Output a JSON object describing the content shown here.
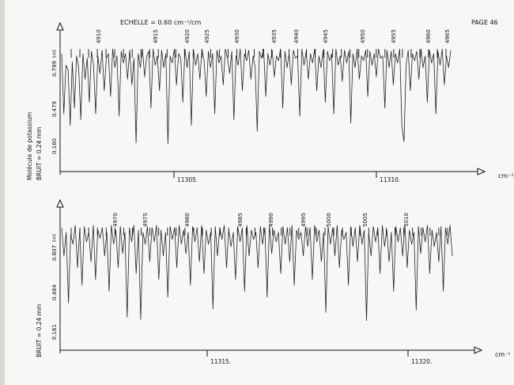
{
  "header": {
    "scale_label": "ECHELLE = 0.60 cm⁻¹/cm",
    "page_label": "PAGE 46"
  },
  "side": {
    "molecule": "Molécule de potassium",
    "noise_top": "BRUIT = 0.24 mm",
    "noise_bottom": "BRUIT = 0.24 mm"
  },
  "chart_data": [
    {
      "type": "line",
      "title": "",
      "xlabel": "cm⁻¹",
      "ylabel": "",
      "x_ticks": [
        "11305.",
        "11310."
      ],
      "y_ticks": [
        "0.160",
        "0.479",
        "0.799"
      ],
      "y_marker": "I=I",
      "line_numbers": [
        "4910",
        "4915",
        "4920",
        "4925",
        "4930",
        "4935",
        "4940",
        "4945",
        "4950",
        "4955",
        "4960",
        "4965"
      ],
      "series": [
        {
          "points": [
            0.82,
            0.3,
            0.72,
            0.68,
            0.2,
            0.75,
            0.35,
            0.8,
            0.7,
            0.25,
            0.82,
            0.6,
            0.78,
            0.4,
            0.84,
            0.72,
            0.3,
            0.8,
            0.65,
            0.85,
            0.5,
            0.78,
            0.82,
            0.45,
            0.86,
            0.7,
            0.8,
            0.28,
            0.84,
            0.74,
            0.82,
            0.6,
            0.85,
            0.55,
            0.78,
            0.05,
            0.82,
            0.7,
            0.86,
            0.62,
            0.8,
            0.84,
            0.35,
            0.86,
            0.72,
            0.8,
            0.5,
            0.85,
            0.7,
            0.82,
            0.04,
            0.8,
            0.74,
            0.86,
            0.55,
            0.82,
            0.78,
            0.4,
            0.86,
            0.7,
            0.84,
            0.2,
            0.85,
            0.72,
            0.82,
            0.6,
            0.86,
            0.76,
            0.45,
            0.84,
            0.7,
            0.82,
            0.3,
            0.85,
            0.74,
            0.8,
            0.55,
            0.86,
            0.78,
            0.65,
            0.84,
            0.25,
            0.8,
            0.72,
            0.86,
            0.5,
            0.82,
            0.76,
            0.85,
            0.6,
            0.8,
            0.7,
            0.15,
            0.84,
            0.78,
            0.86,
            0.45,
            0.82,
            0.72,
            0.85,
            0.62,
            0.8,
            0.76,
            0.86,
            0.35,
            0.84,
            0.7,
            0.82,
            0.55,
            0.85,
            0.78,
            0.8,
            0.28,
            0.86,
            0.72,
            0.84,
            0.6,
            0.82,
            0.74,
            0.86,
            0.5,
            0.8,
            0.7,
            0.85,
            0.4,
            0.84,
            0.76,
            0.82,
            0.3,
            0.86,
            0.72,
            0.8,
            0.58,
            0.85,
            0.74,
            0.84,
            0.22,
            0.82,
            0.7,
            0.86,
            0.6,
            0.8,
            0.76,
            0.85,
            0.45,
            0.84,
            0.72,
            0.82,
            0.62,
            0.86,
            0.78,
            0.8,
            0.35,
            0.85,
            0.7,
            0.84,
            0.55,
            0.82,
            0.74,
            0.86,
            0.2,
            0.06,
            0.72,
            0.85,
            0.5,
            0.82,
            0.76,
            0.84,
            0.6,
            0.86,
            0.7,
            0.8,
            0.4,
            0.85,
            0.74,
            0.82,
            0.3,
            0.84,
            0.72,
            0.86,
            0.55,
            0.8,
            0.7,
            0.85
          ]
        }
      ]
    },
    {
      "type": "line",
      "title": "",
      "xlabel": "cm⁻¹",
      "ylabel": "",
      "x_ticks": [
        "11315.",
        "11320."
      ],
      "y_ticks": [
        "0.161",
        "0.484",
        "0.807"
      ],
      "y_marker": "I=I",
      "line_numbers": [
        "4970",
        "4975",
        "4980",
        "4985",
        "4990",
        "4995",
        "5000",
        "5005",
        "5010"
      ],
      "series": [
        {
          "points": [
            0.84,
            0.6,
            0.8,
            0.2,
            0.78,
            0.7,
            0.86,
            0.5,
            0.82,
            0.35,
            0.85,
            0.72,
            0.8,
            0.55,
            0.86,
            0.4,
            0.82,
            0.75,
            0.84,
            0.6,
            0.8,
            0.3,
            0.86,
            0.7,
            0.82,
            0.5,
            0.85,
            0.62,
            0.8,
            0.08,
            0.84,
            0.72,
            0.86,
            0.45,
            0.82,
            0.06,
            0.8,
            0.7,
            0.85,
            0.55,
            0.84,
            0.72,
            0.86,
            0.4,
            0.82,
            0.6,
            0.8,
            0.25,
            0.85,
            0.74,
            0.84,
            0.5,
            0.86,
            0.7,
            0.82,
            0.62,
            0.8,
            0.35,
            0.85,
            0.72,
            0.84,
            0.55,
            0.86,
            0.45,
            0.82,
            0.7,
            0.8,
            0.15,
            0.85,
            0.6,
            0.84,
            0.74,
            0.86,
            0.5,
            0.82,
            0.68,
            0.8,
            0.4,
            0.85,
            0.72,
            0.84,
            0.3,
            0.86,
            0.6,
            0.82,
            0.74,
            0.8,
            0.5,
            0.85,
            0.7,
            0.84,
            0.25,
            0.86,
            0.62,
            0.82,
            0.72,
            0.8,
            0.45,
            0.85,
            0.7,
            0.84,
            0.55,
            0.86,
            0.35,
            0.82,
            0.74,
            0.8,
            0.6,
            0.85,
            0.68,
            0.84,
            0.4,
            0.86,
            0.72,
            0.82,
            0.55,
            0.8,
            0.12,
            0.85,
            0.7,
            0.84,
            0.6,
            0.86,
            0.5,
            0.82,
            0.74,
            0.8,
            0.35,
            0.85,
            0.68,
            0.84,
            0.55,
            0.86,
            0.7,
            0.82,
            0.05,
            0.8,
            0.6,
            0.85,
            0.72,
            0.84,
            0.45,
            0.86,
            0.68,
            0.82,
            0.55,
            0.8,
            0.3,
            0.85,
            0.72,
            0.84,
            0.6,
            0.86,
            0.5,
            0.82,
            0.7,
            0.8,
            0.14,
            0.85,
            0.62,
            0.84,
            0.72,
            0.86,
            0.45,
            0.82,
            0.68,
            0.8,
            0.55,
            0.85,
            0.3,
            0.84,
            0.7,
            0.86,
            0.6
          ]
        }
      ]
    }
  ]
}
